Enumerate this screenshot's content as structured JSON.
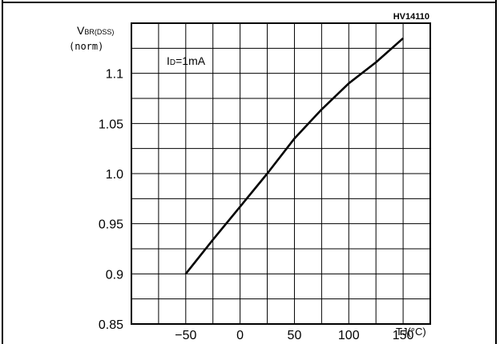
{
  "chart_data": {
    "type": "line",
    "part_number": "HV14110",
    "ylabel": {
      "main": "V",
      "subscript": "BR(DSS)",
      "unit": "(norm)"
    },
    "xlabel": "TJ(°C)",
    "annotation": {
      "main": "I",
      "subscript": "D",
      "rest": "=1mA"
    },
    "x_ticks": [
      -50,
      0,
      50,
      100,
      150
    ],
    "x_tick_labels": [
      "−50",
      "0",
      "50",
      "100",
      "150"
    ],
    "y_ticks": [
      0.85,
      0.9,
      0.95,
      1.0,
      1.05,
      1.1
    ],
    "y_tick_labels": [
      "0.85",
      "0.9",
      "0.95",
      "1.0",
      "1.05",
      "1.1"
    ],
    "xlim": [
      -100,
      175
    ],
    "ylim": [
      0.85,
      1.15
    ],
    "grid": true,
    "series": [
      {
        "x": [
          -50,
          -25,
          0,
          25,
          50,
          75,
          100,
          125,
          150
        ],
        "y": [
          0.9,
          0.934,
          0.967,
          1.0,
          1.035,
          1.064,
          1.09,
          1.111,
          1.135
        ]
      }
    ]
  }
}
